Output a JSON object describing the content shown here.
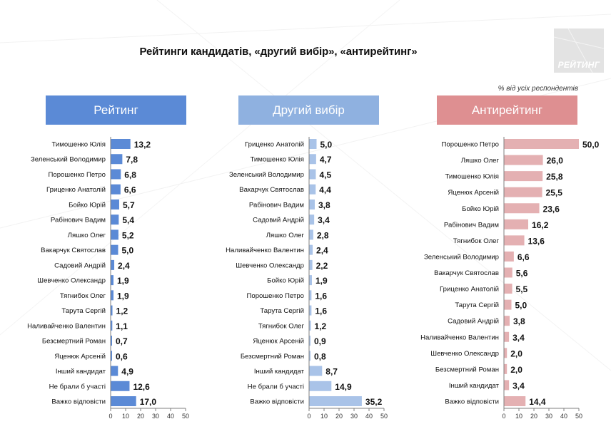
{
  "title": "Рейтинги кандидатів, «другий вибір», «антирейтинг»",
  "note": "% від усіх респондентів",
  "logo": {
    "text": "РЕЙТИНГ"
  },
  "colors": {
    "rating": "#5b8ad6",
    "second": "#a9c3e8",
    "anti": "#e4b0b2",
    "header_rating": "#5b8ad6",
    "header_second": "#8fb1e0",
    "header_anti": "#de8f91"
  },
  "chart_data": [
    {
      "type": "bar",
      "orientation": "horizontal",
      "title": "Рейтинг",
      "categories": [
        "Тимошенко Юлія",
        "Зеленський Володимир",
        "Порошенко Петро",
        "Гриценко Анатолій",
        "Бойко Юрій",
        "Рабінович Вадим",
        "Ляшко Олег",
        "Вакарчук Святослав",
        "Садовий Андрій",
        "Шевченко Олександр",
        "Тягнибок Олег",
        "Тарута Сергій",
        "Наливайченко Валентин",
        "Безсмертний Роман",
        "Яценюк Арсеній",
        "Інший кандидат",
        "Не брали б участі",
        "Важко відповісти"
      ],
      "values": [
        13.2,
        7.8,
        6.8,
        6.6,
        5.7,
        5.4,
        5.2,
        5.0,
        2.4,
        1.9,
        1.9,
        1.2,
        1.1,
        0.7,
        0.6,
        4.9,
        12.6,
        17.0
      ],
      "value_labels": [
        "13,2",
        "7,8",
        "6,8",
        "6,6",
        "5,7",
        "5,4",
        "5,2",
        "5,0",
        "2,4",
        "1,9",
        "1,9",
        "1,2",
        "1,1",
        "0,7",
        "0,6",
        "4,9",
        "12,6",
        "17,0"
      ],
      "xlim": [
        0,
        50
      ],
      "ticks": [
        "0",
        "10",
        "20",
        "30",
        "40",
        "50"
      ],
      "color": "#5b8ad6"
    },
    {
      "type": "bar",
      "orientation": "horizontal",
      "title": "Другий вибір",
      "categories": [
        "Гриценко Анатолій",
        "Тимошенко Юлія",
        "Зеленський Володимир",
        "Вакарчук Святослав",
        "Рабінович Вадим",
        "Садовий Андрій",
        "Ляшко Олег",
        "Наливайченко Валентин",
        "Шевченко Олександр",
        "Бойко Юрій",
        "Порошенко Петро",
        "Тарута Сергій",
        "Тягнибок Олег",
        "Яценюк Арсеній",
        "Безсмертний Роман",
        "Інший кандидат",
        "Не брали б участі",
        "Важко відповісти"
      ],
      "values": [
        5.0,
        4.7,
        4.5,
        4.4,
        3.8,
        3.4,
        2.8,
        2.4,
        2.2,
        1.9,
        1.6,
        1.6,
        1.2,
        0.9,
        0.8,
        8.7,
        14.9,
        35.2
      ],
      "value_labels": [
        "5,0",
        "4,7",
        "4,5",
        "4,4",
        "3,8",
        "3,4",
        "2,8",
        "2,4",
        "2,2",
        "1,9",
        "1,6",
        "1,6",
        "1,2",
        "0,9",
        "0,8",
        "8,7",
        "14,9",
        "35,2"
      ],
      "xlim": [
        0,
        50
      ],
      "ticks": [
        "0",
        "10",
        "20",
        "30",
        "40",
        "50"
      ],
      "color": "#a9c3e8"
    },
    {
      "type": "bar",
      "orientation": "horizontal",
      "title": "Антирейтинг",
      "categories": [
        "Порошенко Петро",
        "Ляшко Олег",
        "Тимошенко Юлія",
        "Яценюк Арсеній",
        "Бойко Юрій",
        "Рабінович Вадим",
        "Тягнибок Олег",
        "Зеленський Володимир",
        "Вакарчук Святослав",
        "Гриценко Анатолій",
        "Тарута Сергій",
        "Садовий Андрій",
        "Наливайченко Валентин",
        "Шевченко Олександр",
        "Безсмертний Роман",
        "Інший кандидат",
        "Важко відповісти"
      ],
      "values": [
        50.0,
        26.0,
        25.8,
        25.5,
        23.6,
        16.2,
        13.6,
        6.6,
        5.6,
        5.5,
        5.0,
        3.8,
        3.4,
        2.0,
        2.0,
        3.4,
        14.4
      ],
      "value_labels": [
        "50,0",
        "26,0",
        "25,8",
        "25,5",
        "23,6",
        "16,2",
        "13,6",
        "6,6",
        "5,6",
        "5,5",
        "5,0",
        "3,8",
        "3,4",
        "2,0",
        "2,0",
        "3,4",
        "14,4"
      ],
      "xlim": [
        0,
        50
      ],
      "ticks": [
        "0",
        "10",
        "20",
        "30",
        "40",
        "50"
      ],
      "color": "#e4b0b2"
    }
  ]
}
